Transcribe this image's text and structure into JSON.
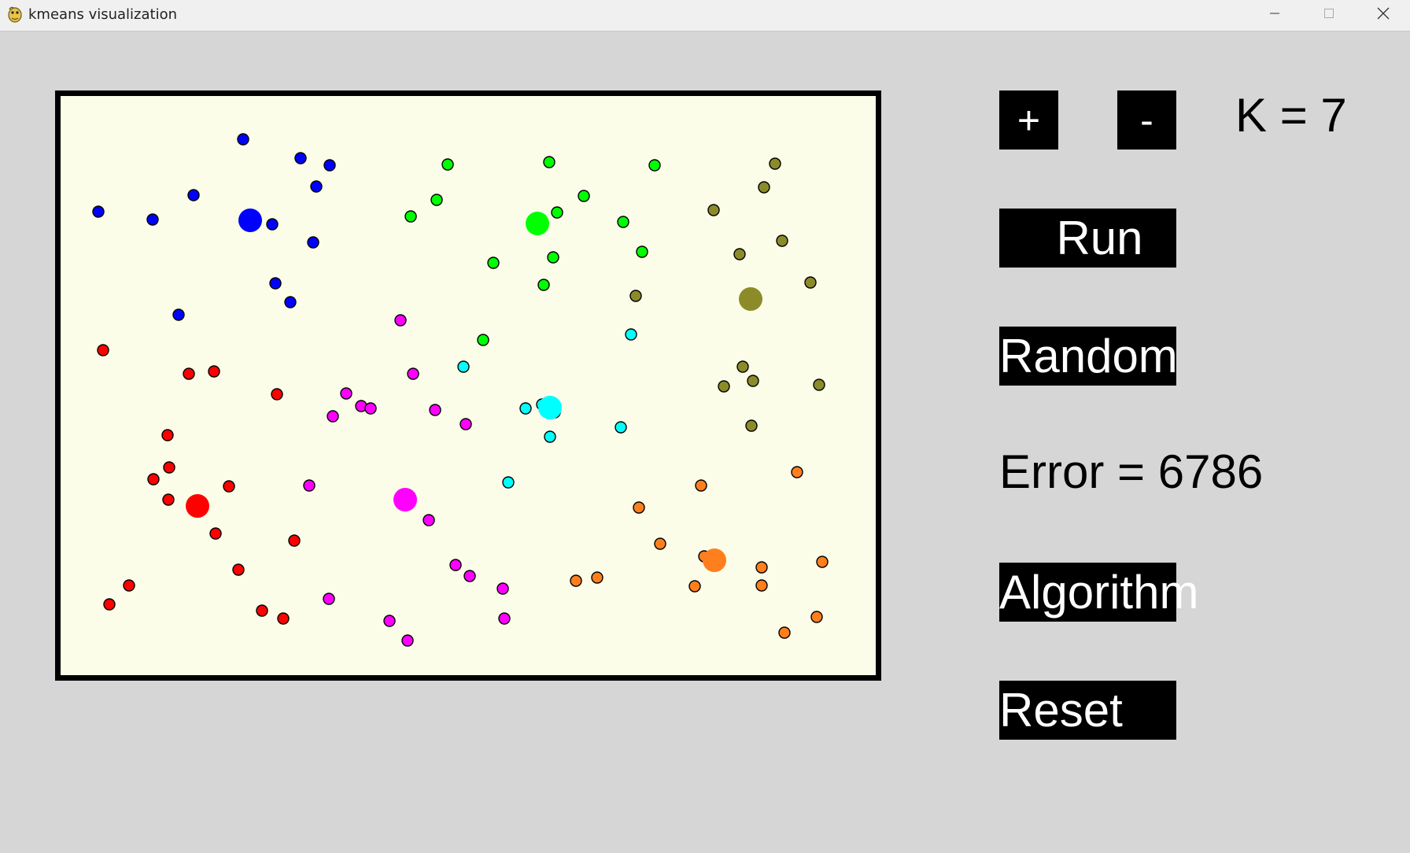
{
  "window": {
    "title": "kmeans visualization"
  },
  "controls": {
    "plus_label": "+",
    "minus_label": "-",
    "k_label": "K = 7",
    "run_label": "Run",
    "random_label": "Random",
    "error_label": "Error = 6786",
    "algorithm_label": "Algorithm",
    "reset_label": "Reset"
  },
  "clusters": [
    {
      "name": "blue",
      "color": "#0000ff",
      "centroid": [
        241,
        158
      ],
      "points": [
        [
          232,
          55
        ],
        [
          305,
          79
        ],
        [
          342,
          88
        ],
        [
          325,
          115
        ],
        [
          169,
          126
        ],
        [
          48,
          147
        ],
        [
          117,
          157
        ],
        [
          269,
          163
        ],
        [
          321,
          186
        ],
        [
          273,
          238
        ],
        [
          292,
          262
        ],
        [
          150,
          278
        ]
      ]
    },
    {
      "name": "green",
      "color": "#00ff00",
      "centroid": [
        606,
        162
      ],
      "points": [
        [
          492,
          87
        ],
        [
          621,
          84
        ],
        [
          755,
          88
        ],
        [
          665,
          127
        ],
        [
          478,
          132
        ],
        [
          445,
          153
        ],
        [
          631,
          148
        ],
        [
          715,
          160
        ],
        [
          739,
          198
        ],
        [
          550,
          212
        ],
        [
          626,
          205
        ],
        [
          614,
          240
        ],
        [
          537,
          310
        ]
      ]
    },
    {
      "name": "olive",
      "color": "#8b8b2a",
      "centroid": [
        877,
        258
      ],
      "points": [
        [
          908,
          86
        ],
        [
          894,
          116
        ],
        [
          830,
          145
        ],
        [
          917,
          184
        ],
        [
          863,
          201
        ],
        [
          953,
          237
        ],
        [
          731,
          254
        ],
        [
          867,
          344
        ],
        [
          880,
          362
        ],
        [
          843,
          369
        ],
        [
          964,
          367
        ],
        [
          878,
          419
        ]
      ]
    },
    {
      "name": "cyan",
      "color": "#00ffff",
      "centroid": [
        622,
        396
      ],
      "points": [
        [
          512,
          344
        ],
        [
          725,
          303
        ],
        [
          591,
          397
        ],
        [
          612,
          392
        ],
        [
          628,
          402
        ],
        [
          622,
          433
        ],
        [
          712,
          421
        ],
        [
          569,
          491
        ]
      ]
    },
    {
      "name": "magenta",
      "color": "#ff00ff",
      "centroid": [
        438,
        513
      ],
      "points": [
        [
          432,
          285
        ],
        [
          448,
          353
        ],
        [
          363,
          378
        ],
        [
          346,
          407
        ],
        [
          382,
          394
        ],
        [
          394,
          397
        ],
        [
          476,
          399
        ],
        [
          515,
          417
        ],
        [
          316,
          495
        ],
        [
          434,
          507
        ],
        [
          468,
          539
        ],
        [
          502,
          596
        ],
        [
          520,
          610
        ],
        [
          562,
          626
        ],
        [
          564,
          664
        ],
        [
          341,
          639
        ],
        [
          418,
          667
        ],
        [
          441,
          692
        ]
      ]
    },
    {
      "name": "red",
      "color": "#ff0000",
      "centroid": [
        174,
        521
      ],
      "points": [
        [
          54,
          323
        ],
        [
          163,
          353
        ],
        [
          195,
          350
        ],
        [
          275,
          379
        ],
        [
          136,
          431
        ],
        [
          138,
          472
        ],
        [
          118,
          487
        ],
        [
          137,
          513
        ],
        [
          214,
          496
        ],
        [
          197,
          556
        ],
        [
          297,
          565
        ],
        [
          226,
          602
        ],
        [
          87,
          622
        ],
        [
          62,
          646
        ],
        [
          256,
          654
        ],
        [
          283,
          664
        ]
      ]
    },
    {
      "name": "orange",
      "color": "#ff7f1f",
      "centroid": [
        831,
        590
      ],
      "points": [
        [
          936,
          478
        ],
        [
          814,
          495
        ],
        [
          735,
          523
        ],
        [
          762,
          569
        ],
        [
          818,
          585
        ],
        [
          891,
          599
        ],
        [
          968,
          592
        ],
        [
          655,
          616
        ],
        [
          682,
          612
        ],
        [
          806,
          623
        ],
        [
          891,
          622
        ],
        [
          961,
          662
        ],
        [
          920,
          682
        ]
      ]
    }
  ]
}
